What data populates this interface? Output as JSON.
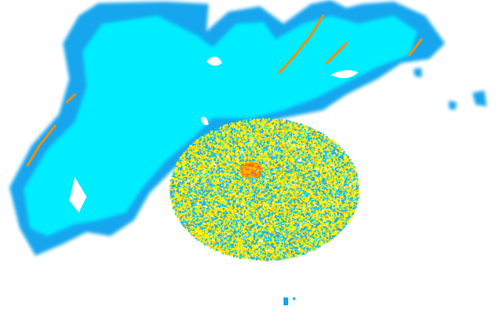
{
  "radar": {
    "colors": {
      "background": "#ffffff",
      "light_echo": "#00e5ff",
      "mid_echo": "#10a8f0",
      "dense_clutter": "#ffee00",
      "moderate": "#ffb000",
      "strong": "#ff6a00"
    }
  }
}
